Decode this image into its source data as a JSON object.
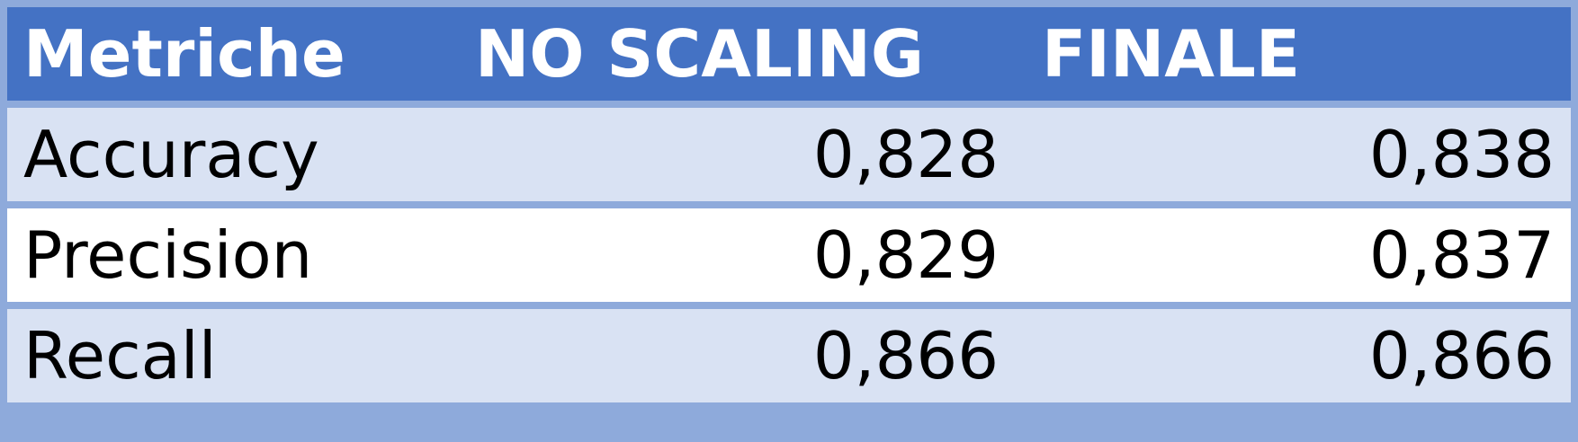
{
  "table": {
    "headers": [
      "Metriche",
      "NO SCALING",
      "FINALE"
    ],
    "rows": [
      {
        "metric": "Accuracy",
        "no_scaling": "0,828",
        "finale": "0,838"
      },
      {
        "metric": "Precision",
        "no_scaling": "0,829",
        "finale": "0,837"
      },
      {
        "metric": "Recall",
        "no_scaling": "0,866",
        "finale": "0,866"
      }
    ]
  },
  "colors": {
    "header_bg": "#4472c4",
    "header_text": "#ffffff",
    "row_band": "#d9e2f3",
    "row_plain": "#ffffff",
    "border": "#8eaadb"
  }
}
